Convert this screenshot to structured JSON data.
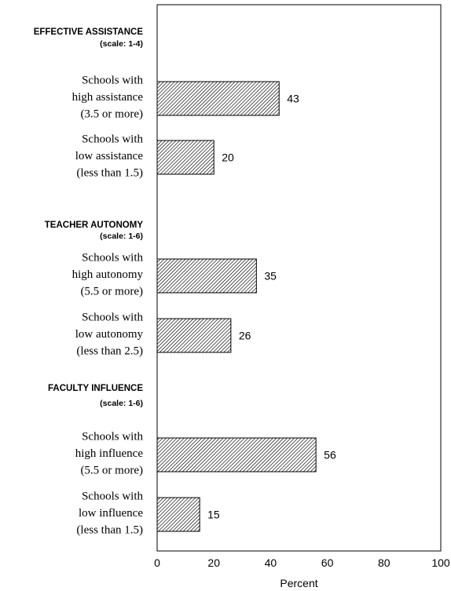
{
  "chart_data": {
    "type": "bar",
    "orientation": "horizontal",
    "xlabel": "Percent",
    "xlim": [
      0,
      100
    ],
    "xticks": [
      "0",
      "20",
      "40",
      "60",
      "80",
      "100"
    ],
    "grid": false,
    "groups": [
      {
        "title": "EFFECTIVE ASSISTANCE",
        "scale": "(scale: 1-4)",
        "bars": [
          {
            "label": [
              "Schools with",
              "high assistance",
              "(3.5 or more)"
            ],
            "value": 43,
            "value_label": "43"
          },
          {
            "label": [
              "Schools with",
              "low assistance",
              "(less than 1.5)"
            ],
            "value": 20,
            "value_label": "20"
          }
        ]
      },
      {
        "title": "TEACHER AUTONOMY",
        "scale": "(scale: 1-6)",
        "bars": [
          {
            "label": [
              "Schools with",
              "high autonomy",
              "(5.5 or more)"
            ],
            "value": 35,
            "value_label": "35"
          },
          {
            "label": [
              "Schools with",
              "low autonomy",
              "(less than 2.5)"
            ],
            "value": 26,
            "value_label": "26"
          }
        ]
      },
      {
        "title": "FACULTY INFLUENCE",
        "scale": "(scale: 1-6)",
        "bars": [
          {
            "label": [
              "Schools with",
              "high influence",
              "(5.5 or more)"
            ],
            "value": 56,
            "value_label": "56"
          },
          {
            "label": [
              "Schools with",
              "low influence",
              "(less than 1.5)"
            ],
            "value": 15,
            "value_label": "15"
          }
        ]
      }
    ],
    "colors": {
      "bar_fill": "#ffffff",
      "hatch": "#000000",
      "frame": "#000000"
    }
  }
}
